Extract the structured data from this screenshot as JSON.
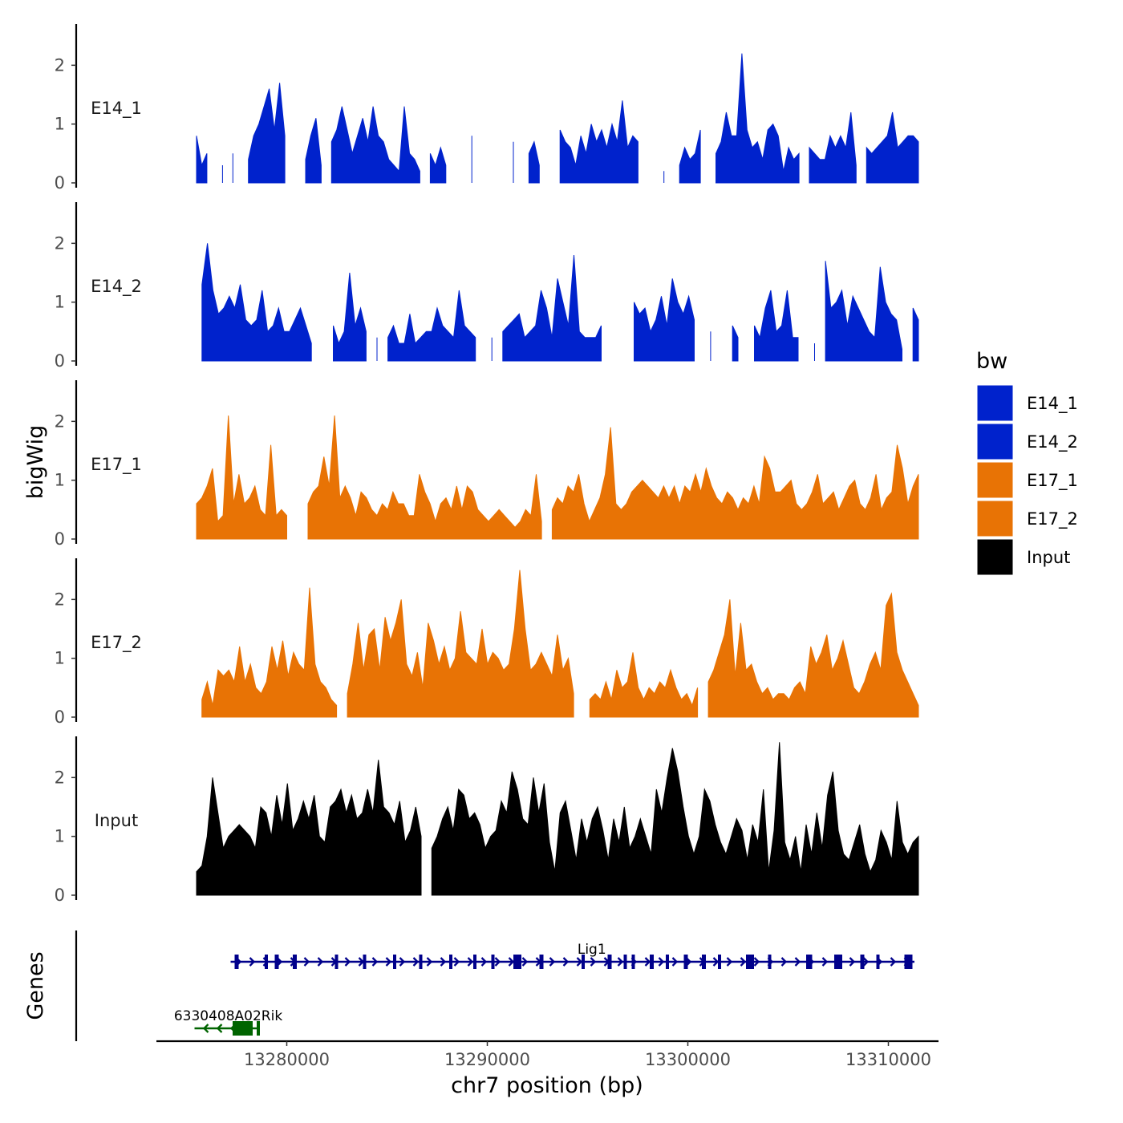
{
  "chart_data": {
    "type": "area",
    "ylabel": "bigWig",
    "xlabel": "chr7 position (bp)",
    "xlim": [
      13273500,
      13312500
    ],
    "data_x_range": [
      13275500,
      13311500
    ],
    "x_ticks": [
      13280000,
      13290000,
      13300000,
      13310000
    ],
    "x_tick_labels": [
      "13280000",
      "13290000",
      "13300000",
      "13310000"
    ],
    "ylim": [
      0,
      2.7
    ],
    "y_ticks": [
      0,
      1,
      2
    ],
    "y_tick_labels": [
      "0",
      "1",
      "2"
    ],
    "legend": {
      "title": "bw",
      "position": "right"
    },
    "series": [
      {
        "name": "E14_1",
        "color": "#0022cc",
        "values": [
          0.8,
          0.3,
          0.5,
          0,
          0,
          0.3,
          0,
          0.5,
          0,
          0,
          0.4,
          0.8,
          1.0,
          1.3,
          1.6,
          0.9,
          1.7,
          0.8,
          0,
          0,
          0,
          0.4,
          0.8,
          1.1,
          0.3,
          0,
          0.7,
          0.9,
          1.3,
          0.9,
          0.5,
          0.8,
          1.1,
          0.7,
          1.3,
          0.8,
          0.7,
          0.4,
          0.3,
          0.2,
          1.3,
          0.5,
          0.4,
          0.2,
          0,
          0.5,
          0.3,
          0.6,
          0.3,
          0,
          0,
          0,
          0,
          0.8,
          0,
          0,
          0,
          0,
          0,
          0,
          0,
          0.7,
          0,
          0,
          0.5,
          0.7,
          0.3,
          0,
          0,
          0,
          0.9,
          0.7,
          0.6,
          0.3,
          0.8,
          0.5,
          1.0,
          0.7,
          0.9,
          0.6,
          1.0,
          0.7,
          1.4,
          0.6,
          0.8,
          0.7,
          0,
          0,
          0,
          0,
          0.2,
          0,
          0,
          0.3,
          0.6,
          0.4,
          0.5,
          0.9,
          0,
          0,
          0.5,
          0.7,
          1.2,
          0.8,
          0.8,
          2.2,
          0.9,
          0.6,
          0.7,
          0.4,
          0.9,
          1.0,
          0.8,
          0.2,
          0.6,
          0.4,
          0.5,
          0,
          0.6,
          0.5,
          0.4,
          0.4,
          0.8,
          0.6,
          0.8,
          0.6,
          1.2,
          0.3,
          0,
          0.6,
          0.5,
          0.6,
          0.7,
          0.8,
          1.2,
          0.6,
          0.7,
          0.8,
          0.8,
          0.7
        ]
      },
      {
        "name": "E14_2",
        "color": "#0022cc",
        "values": [
          0,
          1.3,
          2.0,
          1.2,
          0.8,
          0.9,
          1.1,
          0.9,
          1.3,
          0.7,
          0.6,
          0.7,
          1.2,
          0.5,
          0.6,
          0.9,
          0.5,
          0.5,
          0.7,
          0.9,
          0.6,
          0.3,
          0,
          0,
          0,
          0.6,
          0.3,
          0.5,
          1.5,
          0.6,
          0.9,
          0.5,
          0,
          0.4,
          0,
          0.4,
          0.6,
          0.3,
          0.3,
          0.8,
          0.3,
          0.4,
          0.5,
          0.5,
          0.9,
          0.6,
          0.5,
          0.4,
          1.2,
          0.6,
          0.5,
          0.4,
          0,
          0,
          0.4,
          0,
          0.5,
          0.6,
          0.7,
          0.8,
          0.4,
          0.5,
          0.6,
          1.2,
          0.9,
          0.4,
          1.4,
          1.0,
          0.6,
          1.8,
          0.5,
          0.4,
          0.4,
          0.4,
          0.6,
          0,
          0,
          0,
          0,
          0,
          1.0,
          0.8,
          0.9,
          0.5,
          0.7,
          1.1,
          0.6,
          1.4,
          1.0,
          0.8,
          1.1,
          0.7,
          0,
          0,
          0.5,
          0,
          0,
          0,
          0.6,
          0.4,
          0,
          0,
          0.6,
          0.4,
          0.9,
          1.2,
          0.5,
          0.6,
          1.2,
          0.4,
          0.4,
          0,
          0,
          0.3,
          0,
          1.7,
          0.9,
          1.0,
          1.2,
          0.6,
          1.1,
          0.9,
          0.7,
          0.5,
          0.4,
          1.6,
          1.0,
          0.8,
          0.7,
          0.2,
          0,
          0.9,
          0.7
        ]
      },
      {
        "name": "E17_1",
        "color": "#e87305",
        "values": [
          0.6,
          0.7,
          0.9,
          1.2,
          0.3,
          0.4,
          2.1,
          0.6,
          1.1,
          0.6,
          0.7,
          0.9,
          0.5,
          0.4,
          1.6,
          0.4,
          0.5,
          0.4,
          0,
          0,
          0,
          0.6,
          0.8,
          0.9,
          1.4,
          0.9,
          2.1,
          0.7,
          0.9,
          0.7,
          0.4,
          0.8,
          0.7,
          0.5,
          0.4,
          0.6,
          0.5,
          0.8,
          0.6,
          0.6,
          0.4,
          0.4,
          1.1,
          0.8,
          0.6,
          0.3,
          0.6,
          0.7,
          0.5,
          0.9,
          0.5,
          0.9,
          0.8,
          0.5,
          0.4,
          0.3,
          0.4,
          0.5,
          0.4,
          0.3,
          0.2,
          0.3,
          0.5,
          0.4,
          1.1,
          0.3,
          0,
          0.5,
          0.7,
          0.6,
          0.9,
          0.8,
          1.1,
          0.6,
          0.3,
          0.5,
          0.7,
          1.1,
          1.9,
          0.6,
          0.5,
          0.6,
          0.8,
          0.9,
          1.0,
          0.9,
          0.8,
          0.7,
          0.9,
          0.7,
          0.9,
          0.6,
          0.9,
          0.8,
          1.1,
          0.8,
          1.2,
          0.9,
          0.7,
          0.6,
          0.8,
          0.7,
          0.5,
          0.7,
          0.6,
          0.9,
          0.6,
          1.4,
          1.2,
          0.8,
          0.8,
          0.9,
          1.0,
          0.6,
          0.5,
          0.6,
          0.8,
          1.1,
          0.6,
          0.7,
          0.8,
          0.5,
          0.7,
          0.9,
          1.0,
          0.6,
          0.5,
          0.7,
          1.1,
          0.5,
          0.7,
          0.8,
          1.6,
          1.2,
          0.6,
          0.9,
          1.1
        ]
      },
      {
        "name": "E17_2",
        "color": "#e87305",
        "values": [
          0,
          0.3,
          0.6,
          0.2,
          0.8,
          0.7,
          0.8,
          0.6,
          1.2,
          0.6,
          0.9,
          0.5,
          0.4,
          0.6,
          1.2,
          0.8,
          1.3,
          0.7,
          1.1,
          0.9,
          0.8,
          2.2,
          0.9,
          0.6,
          0.5,
          0.3,
          0.2,
          0,
          0.4,
          0.9,
          1.6,
          0.8,
          1.4,
          1.5,
          0.8,
          1.7,
          1.3,
          1.6,
          2.0,
          0.9,
          0.7,
          1.1,
          0.5,
          1.6,
          1.3,
          0.9,
          1.2,
          0.8,
          1.0,
          1.8,
          1.1,
          1.0,
          0.9,
          1.5,
          0.9,
          1.1,
          1.0,
          0.8,
          0.9,
          1.5,
          2.5,
          1.5,
          0.8,
          0.9,
          1.1,
          0.9,
          0.7,
          1.4,
          0.8,
          1.0,
          0.4,
          0,
          0,
          0.3,
          0.4,
          0.3,
          0.6,
          0.3,
          0.8,
          0.5,
          0.6,
          1.1,
          0.5,
          0.3,
          0.5,
          0.4,
          0.6,
          0.5,
          0.8,
          0.5,
          0.3,
          0.4,
          0.2,
          0.5,
          0,
          0.6,
          0.8,
          1.1,
          1.4,
          2.0,
          0.7,
          1.6,
          0.8,
          0.9,
          0.6,
          0.4,
          0.5,
          0.3,
          0.4,
          0.4,
          0.3,
          0.5,
          0.6,
          0.4,
          1.2,
          0.9,
          1.1,
          1.4,
          0.8,
          1.0,
          1.3,
          0.9,
          0.5,
          0.4,
          0.6,
          0.9,
          1.1,
          0.8,
          1.9,
          2.1,
          1.1,
          0.8,
          0.6,
          0.4,
          0.2
        ]
      },
      {
        "name": "Input",
        "color": "#000000",
        "values": [
          0.4,
          0.5,
          1.0,
          2.0,
          1.4,
          0.8,
          1.0,
          1.1,
          1.2,
          1.1,
          1.0,
          0.8,
          1.5,
          1.4,
          1.0,
          1.7,
          1.2,
          1.9,
          1.1,
          1.3,
          1.6,
          1.3,
          1.7,
          1.0,
          0.9,
          1.5,
          1.6,
          1.8,
          1.4,
          1.7,
          1.3,
          1.4,
          1.8,
          1.4,
          2.3,
          1.5,
          1.4,
          1.2,
          1.6,
          0.9,
          1.1,
          1.5,
          1.0,
          0,
          0.8,
          1.0,
          1.3,
          1.5,
          1.1,
          1.8,
          1.7,
          1.3,
          1.4,
          1.2,
          0.8,
          1.0,
          1.1,
          1.6,
          1.4,
          2.1,
          1.8,
          1.3,
          1.2,
          2.0,
          1.4,
          1.9,
          0.9,
          0.4,
          1.4,
          1.6,
          1.1,
          0.6,
          1.3,
          0.9,
          1.3,
          1.5,
          1.1,
          0.6,
          1.3,
          0.9,
          1.5,
          0.8,
          1.0,
          1.3,
          1.0,
          0.7,
          1.8,
          1.4,
          2.0,
          2.5,
          2.1,
          1.5,
          1.0,
          0.7,
          1.0,
          1.8,
          1.6,
          1.2,
          0.9,
          0.7,
          1.0,
          1.3,
          1.1,
          0.6,
          1.2,
          0.9,
          1.8,
          0.4,
          1.1,
          2.6,
          0.9,
          0.6,
          1.0,
          0.4,
          1.2,
          0.7,
          1.4,
          0.8,
          1.7,
          2.1,
          1.1,
          0.7,
          0.6,
          0.9,
          1.2,
          0.7,
          0.4,
          0.6,
          1.1,
          0.9,
          0.6,
          1.6,
          0.9,
          0.7,
          0.9,
          1.0
        ]
      }
    ],
    "genes": {
      "title": "Genes",
      "items": [
        {
          "name": "Lig1",
          "strand": "+",
          "start": 13277200,
          "end": 13311300,
          "color": "#00008b",
          "exons": [
            [
              13277400,
              13277600
            ],
            [
              13278900,
              13279000
            ],
            [
              13279400,
              13279600
            ],
            [
              13280300,
              13280500
            ],
            [
              13282400,
              13282500
            ],
            [
              13283800,
              13283900
            ],
            [
              13285300,
              13285400
            ],
            [
              13286600,
              13286700
            ],
            [
              13288100,
              13288200
            ],
            [
              13289300,
              13289400
            ],
            [
              13290200,
              13290300
            ],
            [
              13291300,
              13291700
            ],
            [
              13292600,
              13292800
            ],
            [
              13294700,
              13294800
            ],
            [
              13296000,
              13296200
            ],
            [
              13296800,
              13296900
            ],
            [
              13297200,
              13297300
            ],
            [
              13298100,
              13298300
            ],
            [
              13298900,
              13299000
            ],
            [
              13299800,
              13300000
            ],
            [
              13300700,
              13300900
            ],
            [
              13301500,
              13301600
            ],
            [
              13302900,
              13303300
            ],
            [
              13304000,
              13304100
            ],
            [
              13305900,
              13306200
            ],
            [
              13307300,
              13307700
            ],
            [
              13308600,
              13308800
            ],
            [
              13309400,
              13309500
            ],
            [
              13310800,
              13311200
            ]
          ]
        },
        {
          "name": "6330408A02Rik",
          "strand": "-",
          "start": 13275400,
          "end": 13278500,
          "color": "#006400",
          "exons": [
            [
              13277300,
              13278300
            ],
            [
              13278500,
              13278600
            ]
          ]
        }
      ]
    }
  }
}
